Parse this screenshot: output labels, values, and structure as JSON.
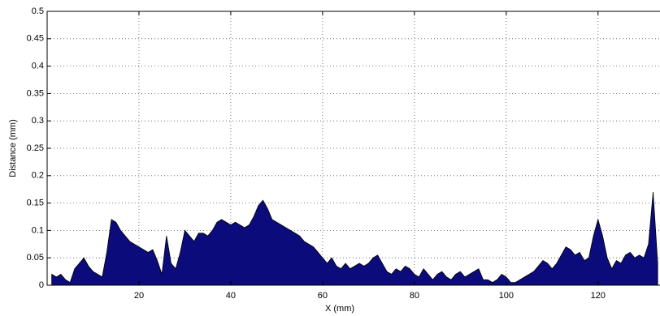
{
  "chart_data": {
    "type": "area",
    "xlabel": "X  (mm)",
    "ylabel": "Distance  (mm)",
    "x": [
      1,
      2,
      3,
      4,
      5,
      6,
      7,
      8,
      9,
      10,
      11,
      12,
      13,
      14,
      15,
      16,
      17,
      18,
      19,
      20,
      21,
      22,
      23,
      24,
      25,
      26,
      27,
      28,
      29,
      30,
      31,
      32,
      33,
      34,
      35,
      36,
      37,
      38,
      39,
      40,
      41,
      42,
      43,
      44,
      45,
      46,
      47,
      48,
      49,
      50,
      51,
      52,
      53,
      54,
      55,
      56,
      57,
      58,
      59,
      60,
      61,
      62,
      63,
      64,
      65,
      66,
      67,
      68,
      69,
      70,
      71,
      72,
      73,
      74,
      75,
      76,
      77,
      78,
      79,
      80,
      81,
      82,
      83,
      84,
      85,
      86,
      87,
      88,
      89,
      90,
      91,
      92,
      93,
      94,
      95,
      96,
      97,
      98,
      99,
      100,
      101,
      102,
      103,
      104,
      105,
      106,
      107,
      108,
      109,
      110,
      111,
      112,
      113,
      114,
      115,
      116,
      117,
      118,
      119,
      120,
      121,
      122,
      123,
      124,
      125,
      126,
      127,
      128,
      129,
      130,
      131,
      132,
      133
    ],
    "series": [
      {
        "color": "#0b0b7c",
        "values": [
          0.02,
          0.015,
          0.02,
          0.01,
          0.005,
          0.03,
          0.04,
          0.05,
          0.035,
          0.025,
          0.02,
          0.015,
          0.06,
          0.12,
          0.115,
          0.1,
          0.09,
          0.08,
          0.075,
          0.07,
          0.065,
          0.06,
          0.065,
          0.045,
          0.02,
          0.09,
          0.04,
          0.03,
          0.06,
          0.1,
          0.09,
          0.08,
          0.095,
          0.095,
          0.09,
          0.1,
          0.115,
          0.12,
          0.115,
          0.11,
          0.115,
          0.11,
          0.105,
          0.11,
          0.125,
          0.145,
          0.155,
          0.14,
          0.12,
          0.115,
          0.11,
          0.105,
          0.1,
          0.095,
          0.09,
          0.08,
          0.075,
          0.07,
          0.06,
          0.05,
          0.04,
          0.05,
          0.035,
          0.03,
          0.04,
          0.03,
          0.035,
          0.04,
          0.035,
          0.04,
          0.05,
          0.055,
          0.04,
          0.025,
          0.02,
          0.03,
          0.025,
          0.035,
          0.03,
          0.02,
          0.015,
          0.03,
          0.02,
          0.01,
          0.02,
          0.025,
          0.015,
          0.01,
          0.02,
          0.025,
          0.015,
          0.02,
          0.025,
          0.03,
          0.01,
          0.01,
          0.005,
          0.01,
          0.02,
          0.015,
          0.005,
          0.005,
          0.01,
          0.015,
          0.02,
          0.025,
          0.035,
          0.045,
          0.04,
          0.03,
          0.04,
          0.055,
          0.07,
          0.065,
          0.055,
          0.06,
          0.045,
          0.05,
          0.09,
          0.12,
          0.09,
          0.05,
          0.03,
          0.045,
          0.04,
          0.055,
          0.06,
          0.05,
          0.055,
          0.05,
          0.075,
          0.17,
          0.04
        ]
      }
    ],
    "xlim": [
      0,
      133.5
    ],
    "xticks": [
      20,
      40,
      60,
      80,
      100,
      120
    ],
    "ylim": [
      0,
      0.5
    ],
    "yticks": [
      0,
      0.05,
      0.1,
      0.15,
      0.2,
      0.25,
      0.3,
      0.35,
      0.4,
      0.45,
      0.5
    ],
    "grid": true
  }
}
